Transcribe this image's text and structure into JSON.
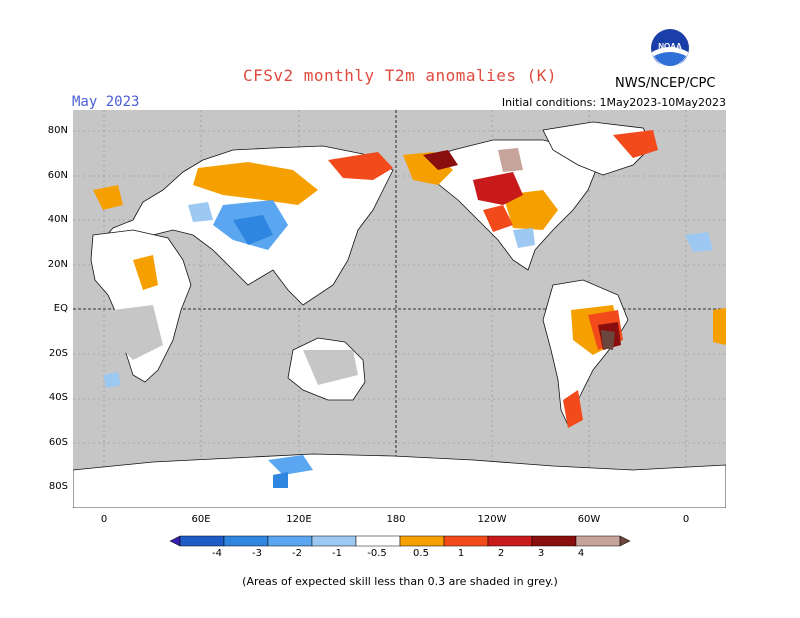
{
  "title": "CFSv2 monthly T2m anomalies (K)",
  "month": "May 2023",
  "initial_conditions": "Initial conditions: 1May2023-10May2023",
  "organization": "NWS/NCEP/CPC",
  "logo_text": "NOAA",
  "lat_labels": [
    "80N",
    "60N",
    "40N",
    "20N",
    "EQ",
    "20S",
    "40S",
    "60S",
    "80S"
  ],
  "lon_labels": [
    "0",
    "60E",
    "120E",
    "180",
    "120W",
    "60W",
    "0"
  ],
  "colorbar": {
    "labels": [
      "-4",
      "-3",
      "-2",
      "-1",
      "-0.5",
      "0.5",
      "1",
      "2",
      "3",
      "4"
    ],
    "colors": [
      "#3a1eb0",
      "#1f5cc8",
      "#2f86e0",
      "#5aa6f0",
      "#9cc8f2",
      "#ffffff",
      "#f5a000",
      "#f24a1a",
      "#c81a1a",
      "#8a0e0e",
      "#c7a49a",
      "#6a463c"
    ]
  },
  "note": "(Areas of expected skill less than 0.3 are shaded in grey.)",
  "map_colors": {
    "background": "#c6c6c6",
    "ocean": "#c6c6c6",
    "land_white": "#ffffff"
  }
}
